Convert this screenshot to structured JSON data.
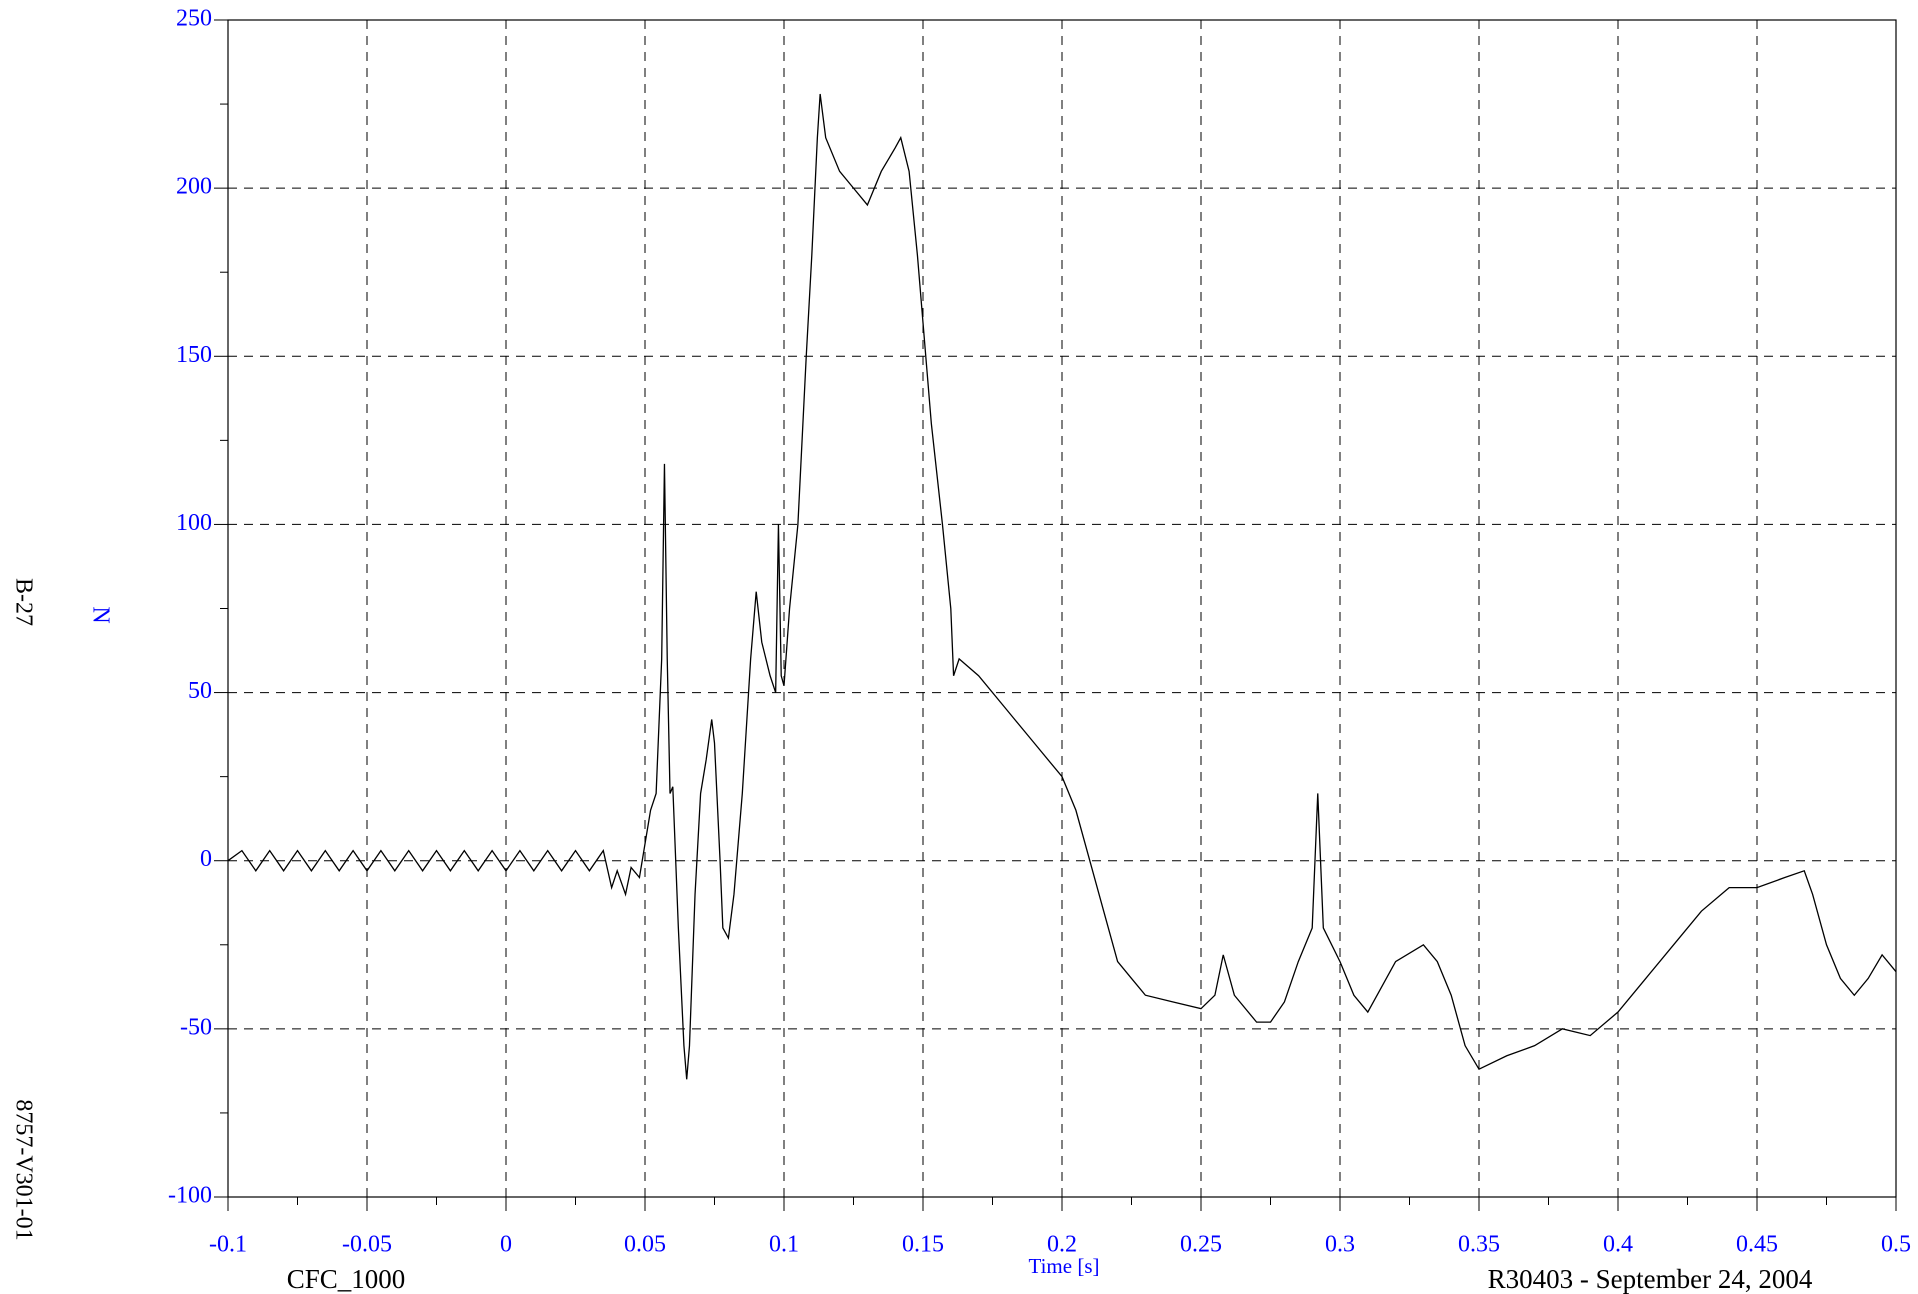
{
  "chart_data": {
    "type": "line",
    "xlabel": "Time [s]",
    "ylabel": "N",
    "side_labels": [
      "B-27",
      "8757-V301-01"
    ],
    "footer_left": "CFC_1000",
    "footer_right": "R30403 - September 24, 2004",
    "xlim": [
      -0.1,
      0.5
    ],
    "ylim": [
      -100,
      250
    ],
    "xticks": [
      -0.1,
      -0.05,
      0,
      0.05,
      0.1,
      0.15,
      0.2,
      0.25,
      0.3,
      0.35,
      0.4,
      0.45,
      0.5
    ],
    "yticks": [
      -100,
      -50,
      0,
      50,
      100,
      150,
      200,
      250
    ],
    "grid": true,
    "series": [
      {
        "color": "#000000",
        "x": [
          -0.1,
          -0.095,
          -0.09,
          -0.085,
          -0.08,
          -0.075,
          -0.07,
          -0.065,
          -0.06,
          -0.055,
          -0.05,
          -0.045,
          -0.04,
          -0.035,
          -0.03,
          -0.025,
          -0.02,
          -0.015,
          -0.01,
          -0.005,
          0,
          0.005,
          0.01,
          0.015,
          0.02,
          0.025,
          0.03,
          0.035,
          0.038,
          0.04,
          0.043,
          0.045,
          0.048,
          0.05,
          0.052,
          0.054,
          0.055,
          0.056,
          0.057,
          0.058,
          0.059,
          0.06,
          0.062,
          0.064,
          0.065,
          0.066,
          0.068,
          0.07,
          0.072,
          0.074,
          0.075,
          0.077,
          0.078,
          0.08,
          0.082,
          0.085,
          0.088,
          0.09,
          0.092,
          0.095,
          0.097,
          0.098,
          0.099,
          0.1,
          0.102,
          0.105,
          0.108,
          0.11,
          0.112,
          0.113,
          0.115,
          0.12,
          0.125,
          0.13,
          0.135,
          0.14,
          0.142,
          0.145,
          0.148,
          0.15,
          0.153,
          0.157,
          0.16,
          0.161,
          0.163,
          0.17,
          0.18,
          0.19,
          0.2,
          0.205,
          0.21,
          0.215,
          0.22,
          0.225,
          0.23,
          0.24,
          0.25,
          0.255,
          0.258,
          0.262,
          0.27,
          0.275,
          0.28,
          0.285,
          0.29,
          0.292,
          0.294,
          0.3,
          0.305,
          0.31,
          0.32,
          0.33,
          0.335,
          0.34,
          0.345,
          0.35,
          0.36,
          0.37,
          0.38,
          0.39,
          0.4,
          0.41,
          0.42,
          0.43,
          0.44,
          0.45,
          0.46,
          0.467,
          0.47,
          0.475,
          0.48,
          0.485,
          0.49,
          0.495,
          0.5
        ],
        "values": [
          0,
          3,
          -3,
          3,
          -3,
          3,
          -3,
          3,
          -3,
          3,
          -3,
          3,
          -3,
          3,
          -3,
          3,
          -3,
          3,
          -3,
          3,
          -3,
          3,
          -3,
          3,
          -3,
          3,
          -3,
          3,
          -8,
          -3,
          -10,
          -2,
          -5,
          5,
          15,
          20,
          40,
          60,
          118,
          60,
          20,
          22,
          -20,
          -55,
          -65,
          -55,
          -10,
          20,
          30,
          42,
          35,
          0,
          -20,
          -23,
          -10,
          20,
          60,
          80,
          65,
          55,
          50,
          100,
          55,
          52,
          75,
          100,
          150,
          180,
          215,
          228,
          215,
          205,
          200,
          195,
          205,
          212,
          215,
          205,
          180,
          160,
          130,
          100,
          75,
          55,
          60,
          55,
          45,
          35,
          25,
          15,
          0,
          -15,
          -30,
          -35,
          -40,
          -42,
          -44,
          -40,
          -28,
          -40,
          -48,
          -48,
          -42,
          -30,
          -20,
          20,
          -20,
          -30,
          -40,
          -45,
          -30,
          -25,
          -30,
          -40,
          -55,
          -62,
          -58,
          -55,
          -50,
          -52,
          -45,
          -35,
          -25,
          -15,
          -8,
          -8,
          -5,
          -3,
          -10,
          -25,
          -35,
          -40,
          -35,
          -28,
          -33
        ]
      }
    ]
  }
}
